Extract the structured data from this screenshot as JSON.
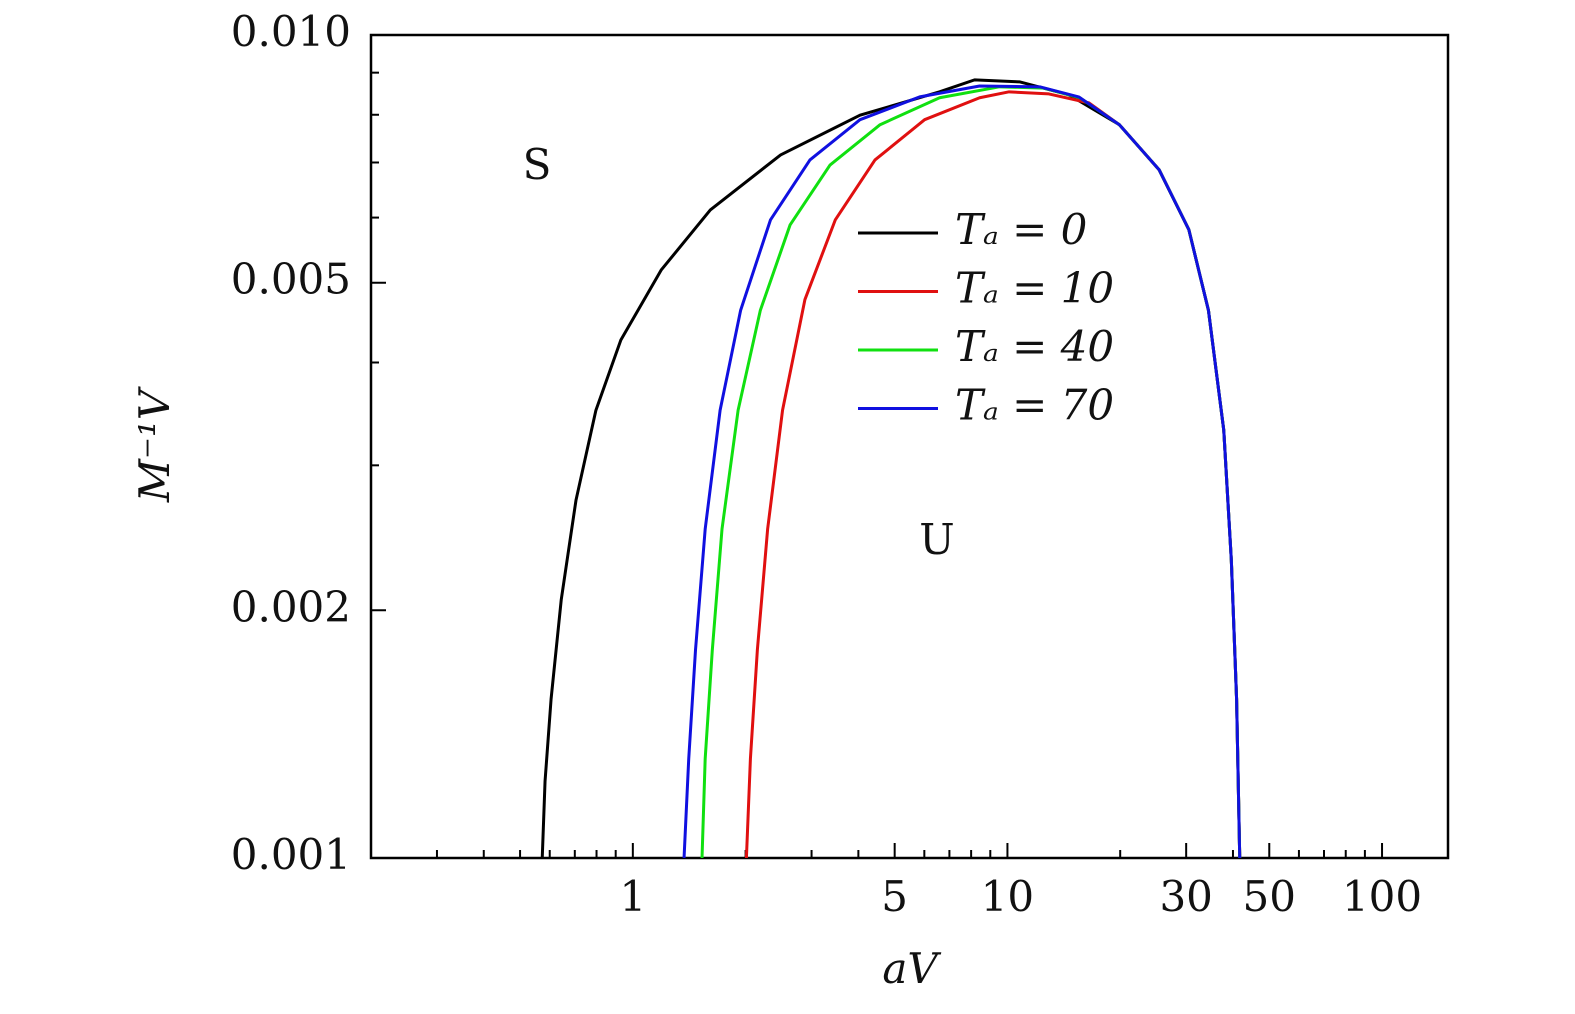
{
  "chart_data": {
    "type": "line",
    "xlabel": "aV",
    "ylabel": "M⁻¹V",
    "xscale": "log",
    "yscale": "log",
    "xlim": [
      0.2,
      150
    ],
    "ylim": [
      0.001,
      0.01
    ],
    "xticks": [
      1,
      5,
      10,
      30,
      50,
      100
    ],
    "xminorticks": [
      0.3,
      0.4,
      0.5,
      0.6,
      0.7,
      0.8,
      0.9,
      2,
      3,
      4,
      6,
      7,
      8,
      9,
      20,
      40,
      60,
      70,
      80,
      90
    ],
    "yticks": [
      {
        "value": 0.01,
        "label": "0.010"
      },
      0.005,
      0.002,
      0.001
    ],
    "yminorticks": [
      0.003,
      0.004,
      0.006,
      0.007,
      0.008,
      0.009
    ],
    "annotations": [
      "S",
      "U"
    ],
    "series": [
      {
        "name": "Tₐ = 0",
        "color": "#000000",
        "x": [
          0.573,
          0.583,
          0.605,
          0.644,
          0.705,
          0.797,
          0.929,
          1.19,
          1.61,
          2.48,
          4.04,
          6.59,
          8.17,
          10.8,
          14.6,
          19.9,
          25.4,
          30.5,
          34.4,
          37.8,
          39.6,
          40.9,
          41.7
        ],
        "values": [
          0.001,
          0.00124,
          0.00156,
          0.00206,
          0.00272,
          0.0035,
          0.00426,
          0.00518,
          0.00613,
          0.00715,
          0.00799,
          0.00853,
          0.00882,
          0.00877,
          0.00846,
          0.00778,
          0.00686,
          0.0058,
          0.00463,
          0.00331,
          0.0023,
          0.00156,
          0.001
        ]
      },
      {
        "name": "Tₐ = 10",
        "color": "#e01010",
        "x": [
          2.01,
          2.06,
          2.15,
          2.29,
          2.51,
          2.88,
          3.47,
          4.43,
          6.01,
          8.43,
          10.1,
          12.9,
          16.5,
          19.9,
          25.4,
          30.5,
          34.4,
          37.8,
          39.6,
          40.9,
          41.7
        ],
        "values": [
          0.001,
          0.00132,
          0.00179,
          0.00251,
          0.0035,
          0.00477,
          0.00596,
          0.00705,
          0.00789,
          0.00839,
          0.00853,
          0.00848,
          0.00827,
          0.00778,
          0.00686,
          0.0058,
          0.00463,
          0.00331,
          0.0023,
          0.00156,
          0.001
        ]
      },
      {
        "name": "Tₐ = 40",
        "color": "#10e010",
        "x": [
          1.53,
          1.56,
          1.63,
          1.73,
          1.91,
          2.19,
          2.63,
          3.36,
          4.57,
          6.59,
          9.52,
          12.5,
          15.6,
          19.9,
          25.4,
          30.5,
          34.4,
          37.8,
          39.6,
          40.9,
          41.7
        ],
        "values": [
          0.001,
          0.00132,
          0.00179,
          0.00251,
          0.0035,
          0.00463,
          0.00588,
          0.00695,
          0.00778,
          0.00839,
          0.00865,
          0.00862,
          0.00839,
          0.00778,
          0.00686,
          0.0058,
          0.00463,
          0.00331,
          0.0023,
          0.00156,
          0.001
        ]
      },
      {
        "name": "Tₐ = 70",
        "color": "#1010e0",
        "x": [
          1.37,
          1.41,
          1.47,
          1.56,
          1.71,
          1.94,
          2.33,
          2.97,
          4.04,
          5.83,
          8.43,
          12.2,
          15.5,
          19.9,
          25.4,
          30.5,
          34.4,
          37.8,
          39.6,
          40.9,
          41.7
        ],
        "values": [
          0.001,
          0.00132,
          0.00179,
          0.00251,
          0.0035,
          0.00463,
          0.00596,
          0.00705,
          0.00789,
          0.00841,
          0.00867,
          0.00865,
          0.00841,
          0.00778,
          0.00686,
          0.0058,
          0.00463,
          0.00331,
          0.0023,
          0.00156,
          0.001
        ]
      }
    ]
  }
}
